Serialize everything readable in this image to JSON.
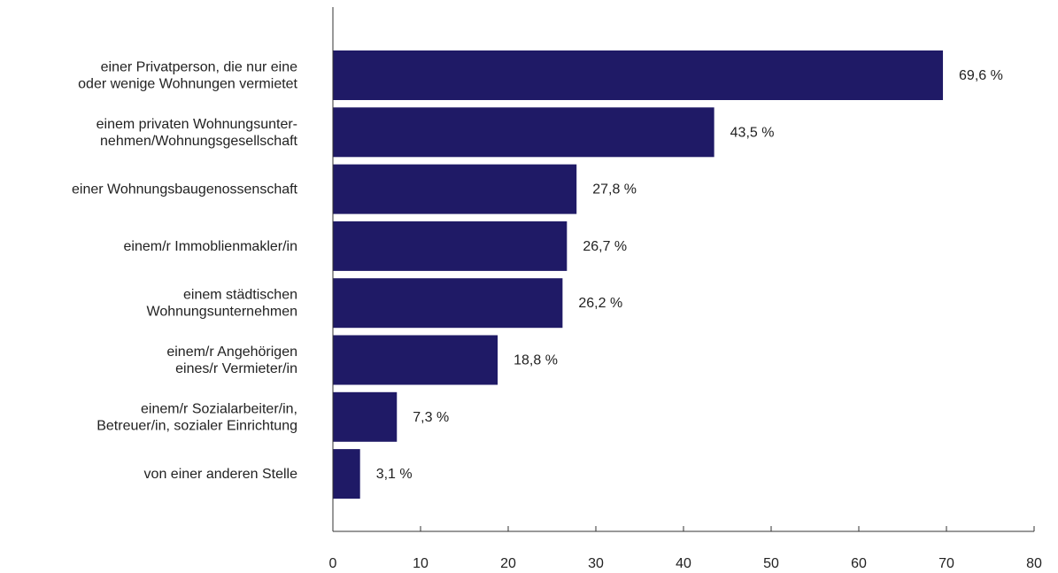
{
  "chart_data": {
    "type": "bar",
    "orientation": "horizontal",
    "categories": [
      [
        "einer Privatperson, die nur eine",
        "oder wenige Wohnungen vermietet"
      ],
      [
        "einem privaten Wohnungsunter-",
        "nehmen/Wohnungsgesellschaft"
      ],
      [
        "einer Wohnungsbaugenossenschaft"
      ],
      [
        "einem/r Immoblienmakler/in"
      ],
      [
        "einem städtischen",
        "Wohnungsunternehmen"
      ],
      [
        "einem/r Angehörigen",
        "eines/r Vermieter/in"
      ],
      [
        "einem/r Sozialarbeiter/in,",
        "Betreuer/in, sozialer Einrichtung"
      ],
      [
        "von einer anderen Stelle"
      ]
    ],
    "values": [
      69.6,
      43.5,
      27.8,
      26.7,
      26.2,
      18.8,
      7.3,
      3.1
    ],
    "value_labels": [
      "69,6 %",
      "43,5 %",
      "27,8 %",
      "26,7 %",
      "26,2 %",
      "18,8 %",
      "7,3 %",
      "3,1 %"
    ],
    "xlim": [
      0,
      80
    ],
    "xticks": [
      "0",
      "10",
      "20",
      "30",
      "40",
      "50",
      "60",
      "70",
      "80"
    ],
    "bar_color": "#1f1a66",
    "grid": false,
    "legend": "none"
  }
}
